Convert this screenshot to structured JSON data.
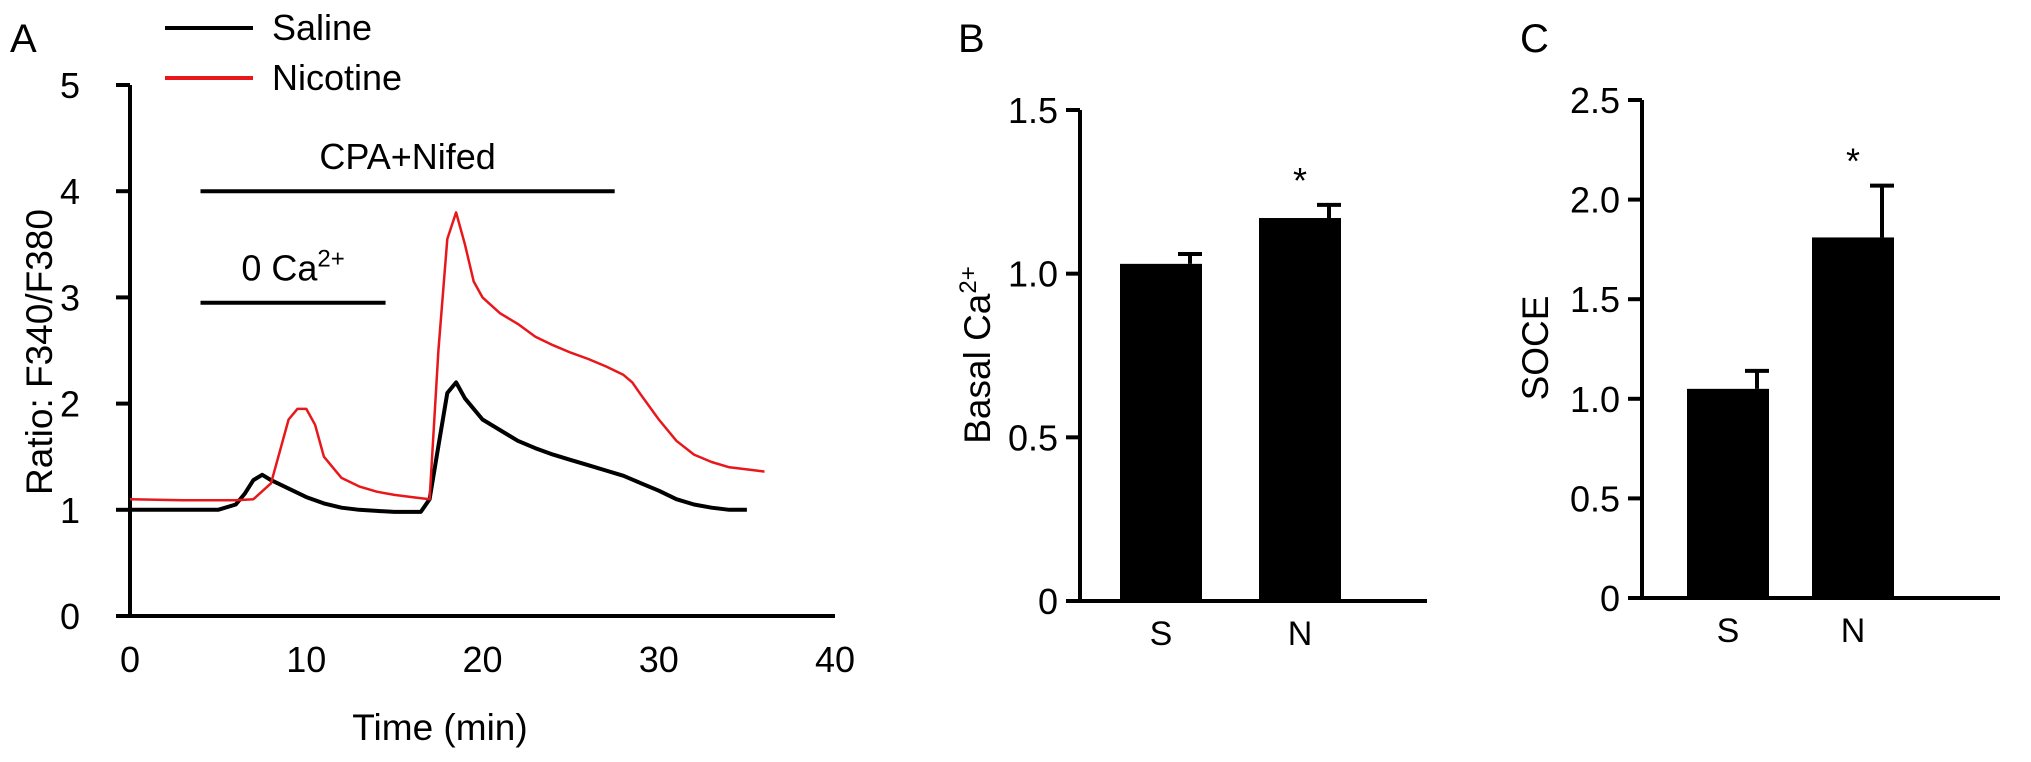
{
  "chart_data": [
    {
      "panel": "A",
      "type": "line",
      "xlabel": "Time (min)",
      "ylabel": "Ratio: F340/F380",
      "xlim": [
        0,
        40
      ],
      "ylim": [
        0,
        5
      ],
      "xticks": [
        0,
        10,
        20,
        30,
        40
      ],
      "yticks": [
        0,
        1,
        2,
        3,
        4,
        5
      ],
      "legend": {
        "placement": "top-left"
      },
      "series": [
        {
          "name": "Saline",
          "color": "#000000",
          "x": [
            0,
            3,
            5,
            6,
            6.5,
            7,
            7.5,
            8,
            9,
            10,
            11,
            12,
            13,
            14,
            15,
            16,
            16.5,
            17,
            17.5,
            18,
            18.5,
            19,
            20,
            21,
            22,
            23,
            24,
            25,
            26,
            27,
            28,
            29,
            30,
            31,
            32,
            33,
            34,
            35
          ],
          "y": [
            1.0,
            1.0,
            1.0,
            1.05,
            1.15,
            1.28,
            1.33,
            1.28,
            1.2,
            1.12,
            1.06,
            1.02,
            1.0,
            0.99,
            0.98,
            0.98,
            0.98,
            1.1,
            1.6,
            2.1,
            2.2,
            2.05,
            1.85,
            1.75,
            1.65,
            1.58,
            1.52,
            1.47,
            1.42,
            1.37,
            1.32,
            1.25,
            1.18,
            1.1,
            1.05,
            1.02,
            1.0,
            1.0
          ]
        },
        {
          "name": "Nicotine",
          "color": "#e8171b",
          "x": [
            0,
            3,
            6,
            7,
            8,
            8.5,
            9,
            9.5,
            10,
            10.5,
            11,
            12,
            13,
            14,
            15,
            16,
            17,
            17.5,
            18,
            18.5,
            19,
            19.5,
            20,
            21,
            22,
            23,
            24,
            25,
            26,
            27,
            28,
            28.5,
            29,
            30,
            31,
            32,
            33,
            34,
            35,
            36
          ],
          "y": [
            1.1,
            1.09,
            1.09,
            1.1,
            1.25,
            1.55,
            1.85,
            1.95,
            1.95,
            1.8,
            1.5,
            1.3,
            1.22,
            1.17,
            1.14,
            1.12,
            1.1,
            2.5,
            3.55,
            3.8,
            3.5,
            3.15,
            3.0,
            2.85,
            2.75,
            2.63,
            2.55,
            2.48,
            2.42,
            2.35,
            2.27,
            2.2,
            2.08,
            1.85,
            1.65,
            1.52,
            1.45,
            1.4,
            1.38,
            1.36
          ]
        }
      ],
      "annotations": [
        {
          "label": "CPA+Nifed",
          "x_start": 4,
          "x_end": 27.5,
          "y": 4.0
        },
        {
          "label_base": "0 Ca",
          "label_sup": "2+",
          "x_start": 4,
          "x_end": 14.5,
          "y": 2.95
        }
      ]
    },
    {
      "panel": "B",
      "type": "bar",
      "ylabel_base": "Basal Ca",
      "ylabel_sup": "2+",
      "categories": [
        "S",
        "N"
      ],
      "values": [
        1.03,
        1.17
      ],
      "errors": [
        0.03,
        0.04
      ],
      "significance": [
        "",
        "*"
      ],
      "ylim": [
        0,
        1.5
      ],
      "yticks": [
        "0",
        "0.5",
        "1.0",
        "1.5"
      ],
      "bar_color": "#000000"
    },
    {
      "panel": "C",
      "type": "bar",
      "ylabel": "SOCE",
      "categories": [
        "S",
        "N"
      ],
      "values": [
        1.05,
        1.81
      ],
      "errors": [
        0.09,
        0.26
      ],
      "significance": [
        "",
        "*"
      ],
      "ylim": [
        0,
        2.5
      ],
      "yticks": [
        "0",
        "0.5",
        "1.0",
        "1.5",
        "2.0",
        "2.5"
      ],
      "bar_color": "#000000"
    }
  ]
}
